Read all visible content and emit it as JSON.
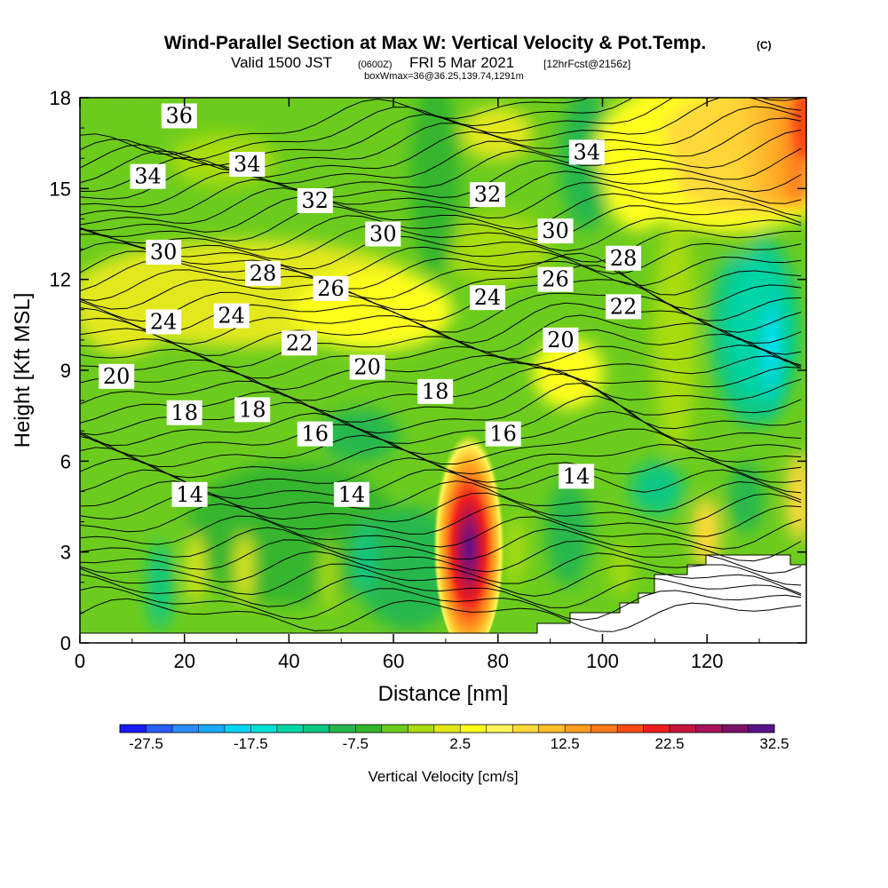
{
  "header": {
    "title": "Wind-Parallel Section at Max W: Vertical Velocity & Pot.Temp.",
    "copyright": "(C)",
    "valid_main": "Valid 1500 JST",
    "valid_zulu": "(0600Z)",
    "valid_date": "FRI 5 Mar 2021",
    "forecast": "[12hrFcst@2156z]",
    "box_info": "boxWmax=36@36.25,139.74,1291m"
  },
  "chart_data": {
    "type": "heatmap",
    "xlabel": "Distance [nm]",
    "ylabel": "Height [Kft MSL]",
    "xlim": [
      0,
      139
    ],
    "ylim": [
      0,
      18
    ],
    "x_ticks": [
      "0",
      "20",
      "40",
      "60",
      "80",
      "100",
      "120"
    ],
    "y_ticks": [
      "0",
      "3",
      "6",
      "9",
      "12",
      "15",
      "18"
    ],
    "grid": false,
    "colorbar": {
      "title": "Vertical Velocity [cm/s]",
      "tick_labels": [
        "-27.5",
        "-17.5",
        "-7.5",
        "2.5",
        "12.5",
        "22.5",
        "32.5"
      ],
      "colors": [
        "#1a1aff",
        "#2a5cff",
        "#2a8cff",
        "#1aaaff",
        "#00d5f5",
        "#00e2d5",
        "#00d6a8",
        "#10c882",
        "#26b84e",
        "#34b62e",
        "#6ccc1e",
        "#a8dc10",
        "#e2e81a",
        "#ffff1a",
        "#fff55a",
        "#ffd93a",
        "#ffbe2a",
        "#ff9d20",
        "#ff7a1a",
        "#ff4a14",
        "#ef1e1e",
        "#c8143c",
        "#a8125a",
        "#7c1268",
        "#5a108a"
      ]
    },
    "contour_labels": [
      {
        "text": "36",
        "x": 19,
        "y": 17.4
      },
      {
        "text": "34",
        "x": 13,
        "y": 15.4
      },
      {
        "text": "34",
        "x": 32,
        "y": 15.8
      },
      {
        "text": "34",
        "x": 97,
        "y": 16.2
      },
      {
        "text": "32",
        "x": 45,
        "y": 14.6
      },
      {
        "text": "32",
        "x": 78,
        "y": 14.8
      },
      {
        "text": "30",
        "x": 16,
        "y": 12.9
      },
      {
        "text": "30",
        "x": 58,
        "y": 13.5
      },
      {
        "text": "30",
        "x": 91,
        "y": 13.6
      },
      {
        "text": "28",
        "x": 35,
        "y": 12.2
      },
      {
        "text": "28",
        "x": 104,
        "y": 12.7
      },
      {
        "text": "26",
        "x": 48,
        "y": 11.7
      },
      {
        "text": "26",
        "x": 91,
        "y": 12.0
      },
      {
        "text": "24",
        "x": 16,
        "y": 10.6
      },
      {
        "text": "24",
        "x": 29,
        "y": 10.8
      },
      {
        "text": "24",
        "x": 78,
        "y": 11.4
      },
      {
        "text": "22",
        "x": 42,
        "y": 9.9
      },
      {
        "text": "22",
        "x": 104,
        "y": 11.1
      },
      {
        "text": "20",
        "x": 7,
        "y": 8.8
      },
      {
        "text": "20",
        "x": 55,
        "y": 9.1
      },
      {
        "text": "20",
        "x": 92,
        "y": 10.0
      },
      {
        "text": "18",
        "x": 20,
        "y": 7.6
      },
      {
        "text": "18",
        "x": 33,
        "y": 7.7
      },
      {
        "text": "18",
        "x": 68,
        "y": 8.3
      },
      {
        "text": "16",
        "x": 45,
        "y": 6.9
      },
      {
        "text": "16",
        "x": 81,
        "y": 6.9
      },
      {
        "text": "14",
        "x": 21,
        "y": 4.9
      },
      {
        "text": "14",
        "x": 52,
        "y": 4.9
      },
      {
        "text": "14",
        "x": 95,
        "y": 5.5
      }
    ]
  }
}
